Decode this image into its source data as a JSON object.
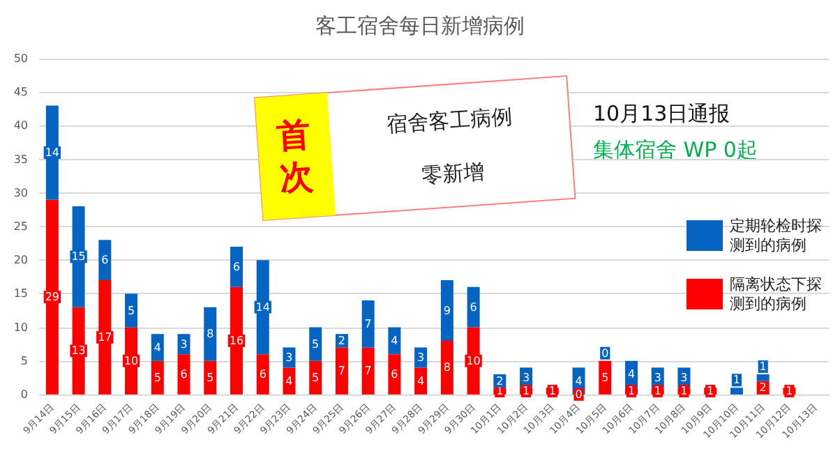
{
  "chart_data": {
    "type": "bar",
    "title": "客工宿舍每日新增病例",
    "categories": [
      "9月14日",
      "9月15日",
      "9月16日",
      "9月17日",
      "9月18日",
      "9月19日",
      "9月20日",
      "9月21日",
      "9月22日",
      "9月23日",
      "9月24日",
      "9月25日",
      "9月26日",
      "9月27日",
      "9月28日",
      "9月29日",
      "9月30日",
      "10月1日",
      "10月2日",
      "10月3日",
      "10月4日",
      "10月5日",
      "10月6日",
      "10月7日",
      "10月8日",
      "10月9日",
      "10月10日",
      "10月11日",
      "10月12日",
      "10月13日"
    ],
    "stacked": true,
    "series": [
      {
        "name": "隔离状态下探测到的病例",
        "color": "#ff0000",
        "values": [
          29,
          13,
          17,
          10,
          5,
          6,
          5,
          16,
          6,
          4,
          5,
          7,
          7,
          6,
          4,
          8,
          10,
          1,
          1,
          1,
          0,
          5,
          1,
          1,
          1,
          1,
          0,
          2,
          1,
          0
        ],
        "value_labels": [
          "29",
          "13",
          "17",
          "10",
          "5",
          "6",
          "5",
          "16",
          "6",
          "4",
          "5",
          "7",
          "7",
          "6",
          "4",
          "8",
          "10",
          "1",
          "1",
          "1",
          "0",
          "5",
          "1",
          "1",
          "1",
          "1",
          null,
          "2",
          "1",
          null
        ]
      },
      {
        "name": "定期轮检时探测到的病例",
        "color": "#0563c1",
        "values": [
          14,
          15,
          6,
          5,
          4,
          3,
          8,
          6,
          14,
          3,
          5,
          2,
          7,
          4,
          3,
          9,
          6,
          2,
          3,
          0,
          4,
          0,
          4,
          3,
          3,
          0,
          1,
          1,
          0,
          0
        ],
        "value_labels": [
          "14",
          "15",
          "6",
          "5",
          "4",
          "3",
          "8",
          "6",
          "14",
          "3",
          "5",
          "2",
          "7",
          "4",
          "3",
          "9",
          "6",
          "2",
          "3",
          null,
          "4",
          "0",
          "4",
          "3",
          "3",
          null,
          "1",
          "1",
          null,
          null
        ]
      }
    ],
    "ylim": [
      0,
      50
    ],
    "yticks": [
      0,
      5,
      10,
      15,
      20,
      25,
      30,
      35,
      40,
      45,
      50
    ],
    "grid": "y",
    "legend": "right",
    "annotations": [
      "首次",
      "宿舍客工病例",
      "零新增",
      "10月13日通报",
      "集体宿舍 WP 0起"
    ]
  }
}
